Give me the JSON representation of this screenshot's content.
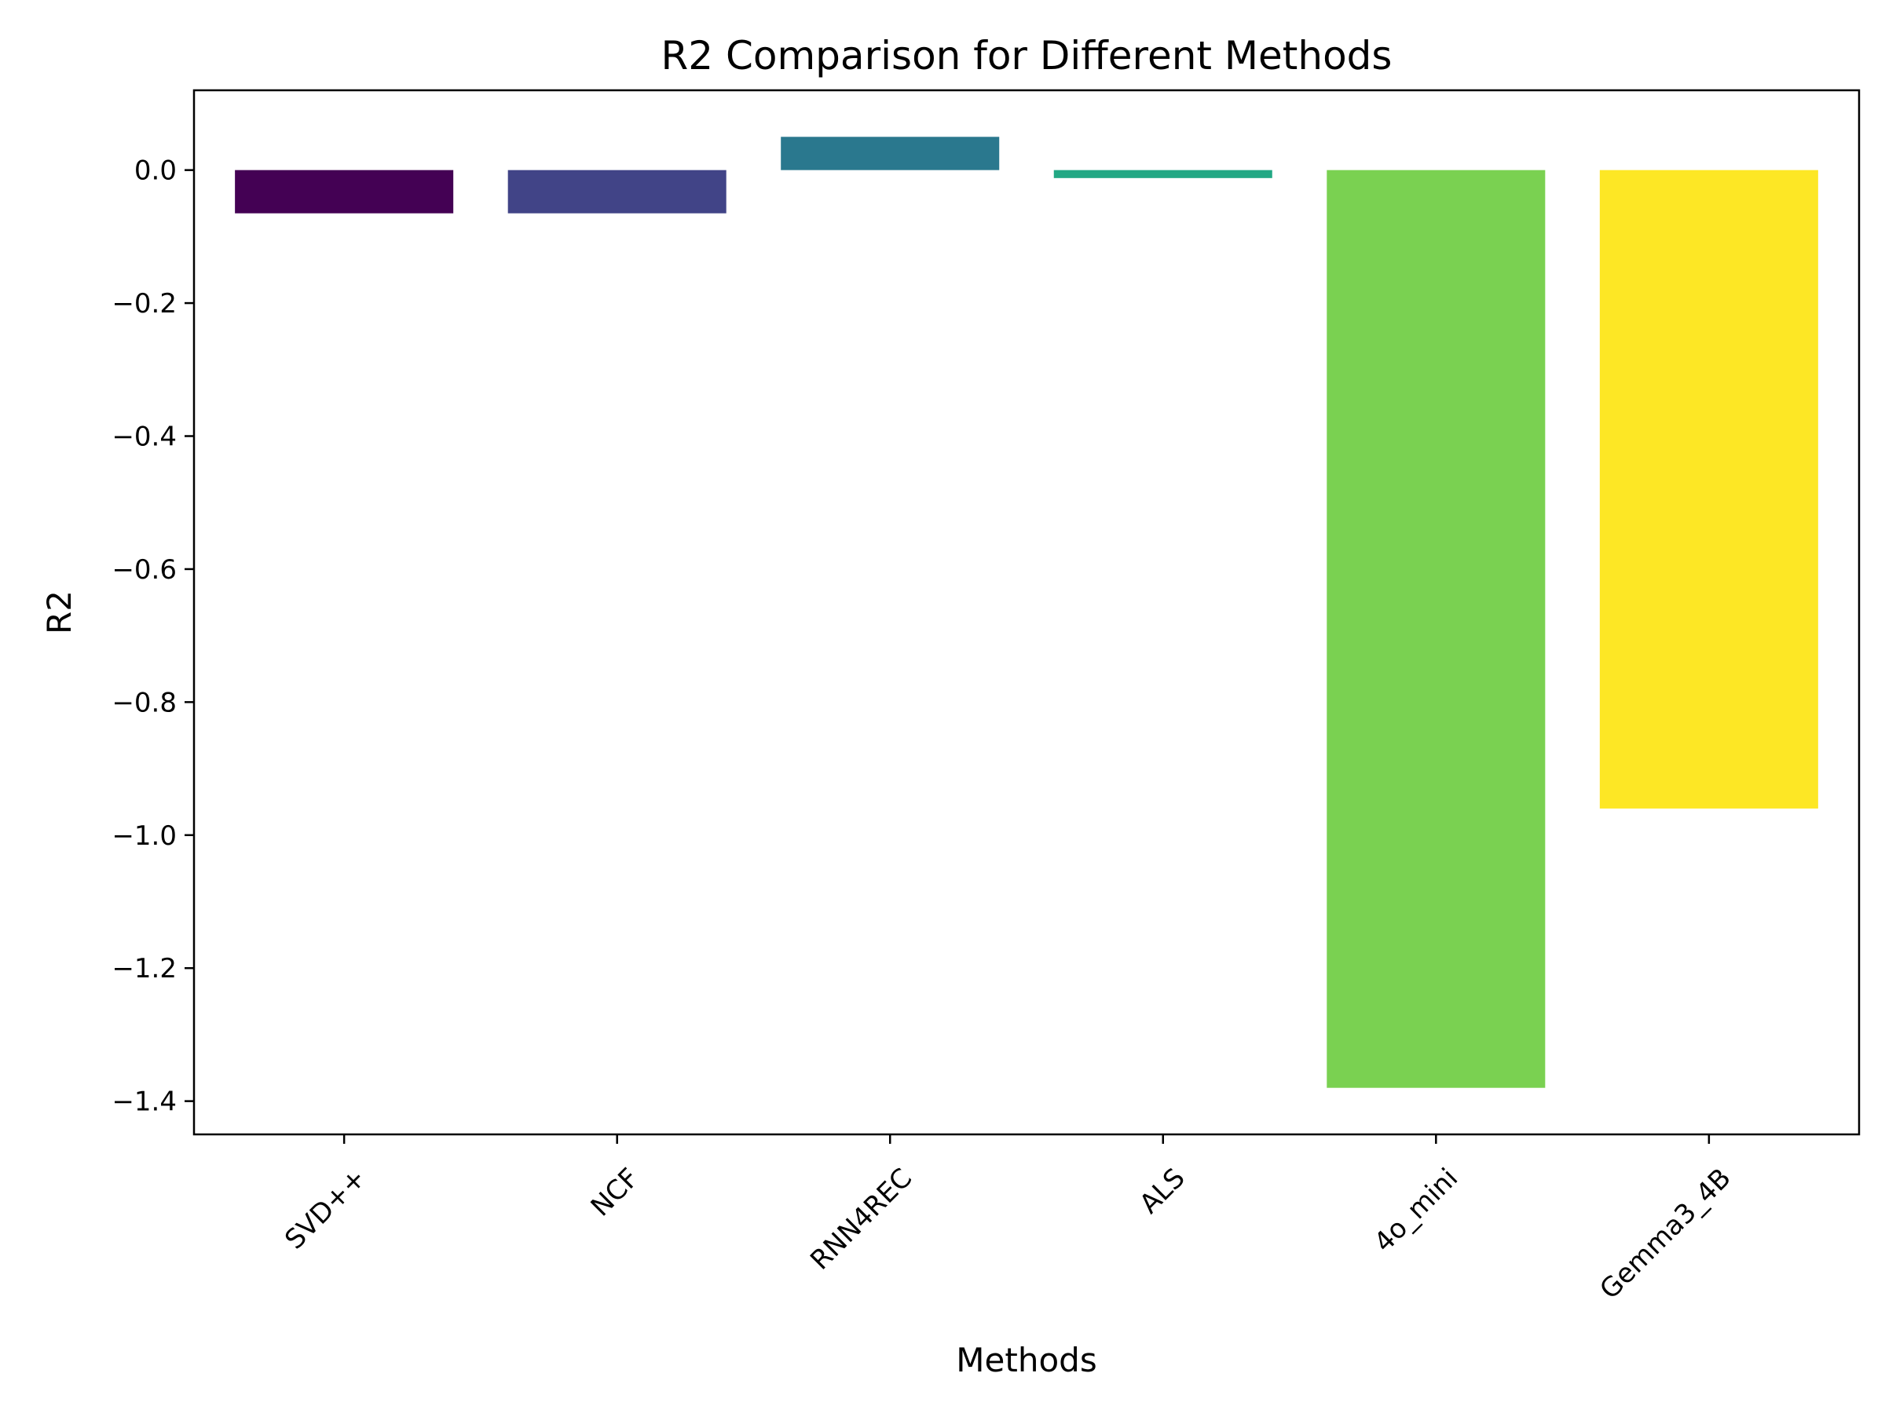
{
  "chart_data": {
    "type": "bar",
    "title": "R2 Comparison for Different Methods",
    "xlabel": "Methods",
    "ylabel": "R2",
    "categories": [
      "SVD++",
      "NCF",
      "RNN4REC",
      "ALS",
      "4o_mini",
      "Gemma3_4B"
    ],
    "values": [
      -0.065,
      -0.065,
      0.05,
      -0.012,
      -1.38,
      -0.96
    ],
    "colors": [
      "#440154",
      "#414487",
      "#2a788e",
      "#22a884",
      "#7ad151",
      "#fde725"
    ],
    "ylim": [
      -1.45,
      0.12
    ],
    "yticks": [
      0.0,
      -0.2,
      -0.4,
      -0.6,
      -0.8,
      -1.0,
      -1.2,
      -1.4
    ],
    "ytick_labels": [
      "0.0",
      "−0.2",
      "−0.4",
      "−0.6",
      "−0.8",
      "−1.0",
      "−1.2",
      "−1.4"
    ],
    "xtick_rotation": 45,
    "grid": false,
    "legend": "none"
  }
}
